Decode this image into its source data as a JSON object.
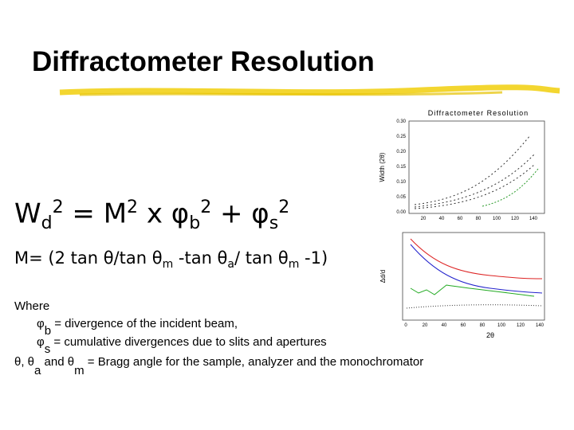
{
  "title": "Diffractometer Resolution",
  "equation_1": [
    "W",
    "d",
    "2",
    " = M",
    "2",
    " x φ",
    "b",
    "2",
    " + φ",
    "s",
    "2"
  ],
  "equation_2": [
    "M= (2 tan θ/tan θ",
    "m",
    " -tan θ",
    "a",
    "/ tan θ",
    "m",
    " -1)"
  ],
  "where": {
    "heading": "Where",
    "line_1": [
      "φ",
      "b",
      "= divergence of the incident beam,"
    ],
    "line_2": [
      "φ",
      "s",
      "= cumulative divergences due to slits and apertures"
    ],
    "line_3": [
      "θ, θ",
      "a",
      "and θ",
      "m",
      "= Bragg angle for the sample, analyzer and the monochromator"
    ]
  },
  "figure": {
    "title": "Diffractometer Resolution",
    "upper_y_label": "Width (2θ)",
    "upper_yticks": [
      "0.30",
      "0.25",
      "0.20",
      "0.15",
      "0.10",
      "0.05",
      "0.00"
    ],
    "upper_xticks": [
      "20",
      "40",
      "60",
      "80",
      "100",
      "120",
      "140"
    ],
    "lower_y_label": "Δd/d",
    "lower_x_label": "2θ",
    "lower_xticks": [
      "0",
      "20",
      "40",
      "60",
      "80",
      "100",
      "120",
      "140"
    ]
  }
}
